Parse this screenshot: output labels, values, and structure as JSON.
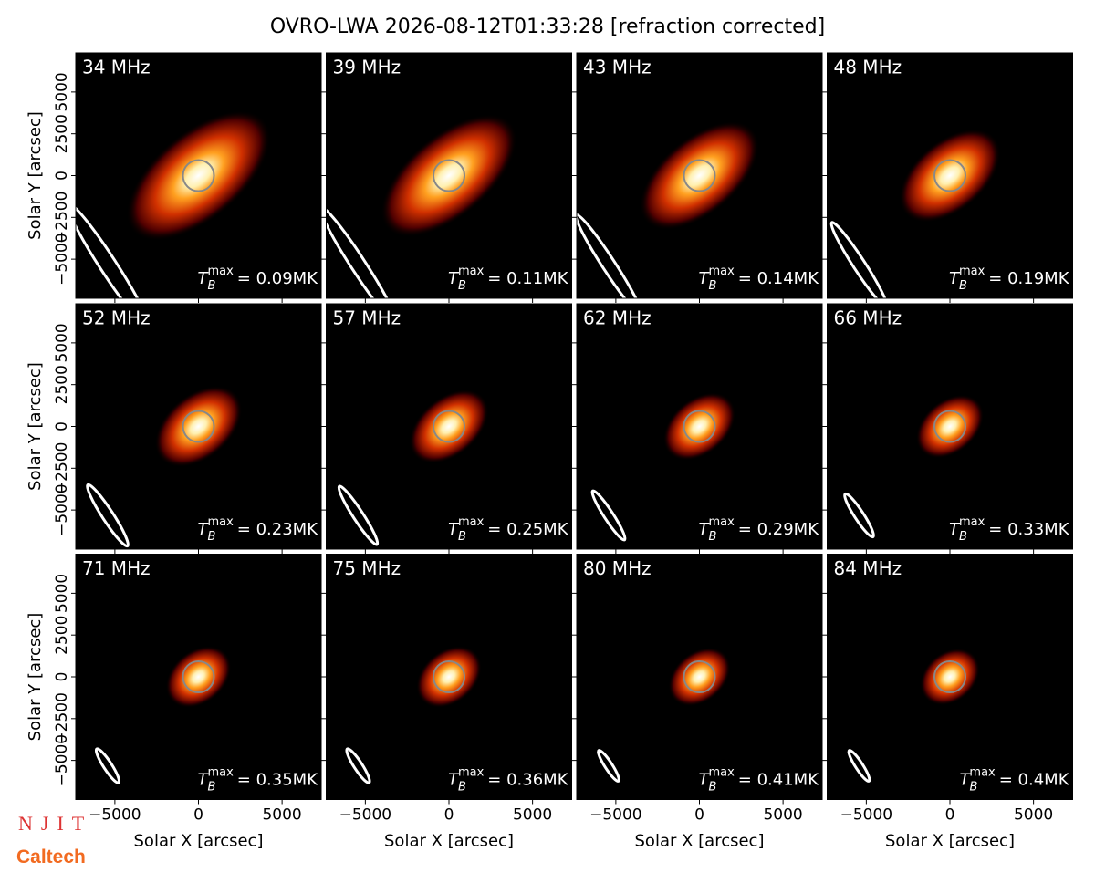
{
  "chart_data": {
    "type": "image_grid",
    "title": "OVRO-LWA 2026-08-12T01:33:28 [refraction corrected]",
    "xlabel": "Solar X [arcsec]",
    "ylabel": "Solar Y [arcsec]",
    "xlim": [
      -7340,
      7340
    ],
    "ylim": [
      -7340,
      7340
    ],
    "xticks": [
      {
        "value": -5000,
        "label": "−5000"
      },
      0,
      5000
    ],
    "yticks": [
      {
        "value": -5000,
        "label": "−5000"
      },
      {
        "value": -2500,
        "label": "−2500"
      },
      0,
      2500,
      5000
    ],
    "panels": [
      {
        "label": "34 MHz",
        "annotation": {
          "symbol": "T",
          "sub": "B",
          "sup": "max",
          "text": "= 0.09MK"
        }
      },
      {
        "label": "39 MHz",
        "annotation": {
          "symbol": "T",
          "sub": "B",
          "sup": "max",
          "text": "= 0.11MK"
        }
      },
      {
        "label": "43 MHz",
        "annotation": {
          "symbol": "T",
          "sub": "B",
          "sup": "max",
          "text": "= 0.14MK"
        }
      },
      {
        "label": "48 MHz",
        "annotation": {
          "symbol": "T",
          "sub": "B",
          "sup": "max",
          "text": "= 0.19MK"
        }
      },
      {
        "label": "52 MHz",
        "annotation": {
          "symbol": "T",
          "sub": "B",
          "sup": "max",
          "text": "= 0.23MK"
        }
      },
      {
        "label": "57 MHz",
        "annotation": {
          "symbol": "T",
          "sub": "B",
          "sup": "max",
          "text": "= 0.25MK"
        }
      },
      {
        "label": "62 MHz",
        "annotation": {
          "symbol": "T",
          "sub": "B",
          "sup": "max",
          "text": "= 0.29MK"
        }
      },
      {
        "label": "66 MHz",
        "annotation": {
          "symbol": "T",
          "sub": "B",
          "sup": "max",
          "text": "= 0.33MK"
        }
      },
      {
        "label": "71 MHz",
        "annotation": {
          "symbol": "T",
          "sub": "B",
          "sup": "max",
          "text": "= 0.35MK"
        }
      },
      {
        "label": "75 MHz",
        "annotation": {
          "symbol": "T",
          "sub": "B",
          "sup": "max",
          "text": "= 0.36MK"
        }
      },
      {
        "label": "80 MHz",
        "annotation": {
          "symbol": "T",
          "sub": "B",
          "sup": "max",
          "text": "= 0.41MK"
        }
      },
      {
        "label": "84 MHz",
        "annotation": {
          "symbol": "T",
          "sub": "B",
          "sup": "max",
          "text": "= 0.4MK"
        }
      }
    ],
    "logos": [
      "NJIT",
      "Caltech"
    ]
  }
}
